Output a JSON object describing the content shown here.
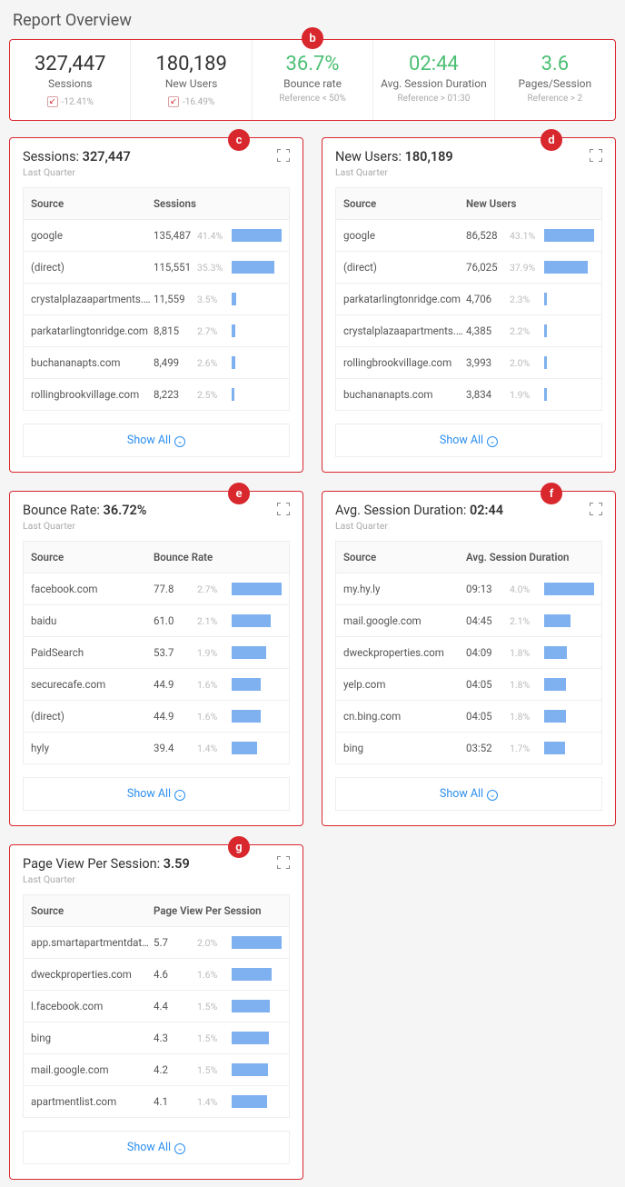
{
  "page_title": "Report Overview",
  "badges": {
    "overview": "b",
    "sessions": "c",
    "new_users": "d",
    "bounce": "e",
    "duration": "f",
    "pageview": "g"
  },
  "colors": {
    "accent_red": "#d8272d",
    "green": "#4bbf73",
    "bar": "#7fb0ef",
    "link": "#2b8ef0"
  },
  "overview": {
    "sessions": {
      "value": "327,447",
      "label": "Sessions",
      "delta": "-12.41%"
    },
    "new_users": {
      "value": "180,189",
      "label": "New Users",
      "delta": "-16.49%"
    },
    "bounce": {
      "value": "36.7%",
      "label": "Bounce rate",
      "ref": "Reference < 50%"
    },
    "duration": {
      "value": "02:44",
      "label": "Avg. Session Duration",
      "ref": "Reference > 01:30"
    },
    "pages": {
      "value": "3.6",
      "label": "Pages/Session",
      "ref": "Reference > 2"
    }
  },
  "show_all": "Show All",
  "sub_label": "Last Quarter",
  "cards": {
    "sessions": {
      "title": "Sessions:",
      "value": "327,447",
      "col1": "Source",
      "col2": "Sessions",
      "rows": [
        {
          "src": "google",
          "val": "135,487",
          "pct": "41.4%",
          "bar": 100
        },
        {
          "src": "(direct)",
          "val": "115,551",
          "pct": "35.3%",
          "bar": 86
        },
        {
          "src": "crystalplazaapartments.com",
          "val": "11,559",
          "pct": "3.5%",
          "bar": 9
        },
        {
          "src": "parkatarlingtonridge.com",
          "val": "8,815",
          "pct": "2.7%",
          "bar": 7
        },
        {
          "src": "buchananapts.com",
          "val": "8,499",
          "pct": "2.6%",
          "bar": 7
        },
        {
          "src": "rollingbrookvillage.com",
          "val": "8,223",
          "pct": "2.5%",
          "bar": 6
        }
      ]
    },
    "new_users": {
      "title": "New Users:",
      "value": "180,189",
      "col1": "Source",
      "col2": "New Users",
      "rows": [
        {
          "src": "google",
          "val": "86,528",
          "pct": "43.1%",
          "bar": 100
        },
        {
          "src": "(direct)",
          "val": "76,025",
          "pct": "37.9%",
          "bar": 88
        },
        {
          "src": "parkatarlingtonridge.com",
          "val": "4,706",
          "pct": "2.3%",
          "bar": 6
        },
        {
          "src": "crystalplazaapartments.com",
          "val": "4,385",
          "pct": "2.2%",
          "bar": 5
        },
        {
          "src": "rollingbrookvillage.com",
          "val": "3,993",
          "pct": "2.0%",
          "bar": 5
        },
        {
          "src": "buchananapts.com",
          "val": "3,834",
          "pct": "1.9%",
          "bar": 5
        }
      ]
    },
    "bounce": {
      "title": "Bounce Rate:",
      "value": "36.72%",
      "col1": "Source",
      "col2": "Bounce Rate",
      "rows": [
        {
          "src": "facebook.com",
          "val": "77.8",
          "pct": "2.7%",
          "bar": 100
        },
        {
          "src": "baidu",
          "val": "61.0",
          "pct": "2.1%",
          "bar": 78
        },
        {
          "src": "PaidSearch",
          "val": "53.7",
          "pct": "1.9%",
          "bar": 69
        },
        {
          "src": "securecafe.com",
          "val": "44.9",
          "pct": "1.6%",
          "bar": 58
        },
        {
          "src": "(direct)",
          "val": "44.9",
          "pct": "1.6%",
          "bar": 58
        },
        {
          "src": "hyly",
          "val": "39.4",
          "pct": "1.4%",
          "bar": 51
        }
      ]
    },
    "duration": {
      "title": "Avg. Session Duration:",
      "value": "02:44",
      "col1": "Source",
      "col2": "Avg. Session Duration",
      "rows": [
        {
          "src": "my.hy.ly",
          "val": "09:13",
          "pct": "4.0%",
          "bar": 100
        },
        {
          "src": "mail.google.com",
          "val": "04:45",
          "pct": "2.1%",
          "bar": 52
        },
        {
          "src": "dweckproperties.com",
          "val": "04:09",
          "pct": "1.8%",
          "bar": 45
        },
        {
          "src": "yelp.com",
          "val": "04:05",
          "pct": "1.8%",
          "bar": 44
        },
        {
          "src": "cn.bing.com",
          "val": "04:05",
          "pct": "1.8%",
          "bar": 44
        },
        {
          "src": "bing",
          "val": "03:52",
          "pct": "1.7%",
          "bar": 42
        }
      ]
    },
    "pageview": {
      "title": "Page View Per Session:",
      "value": "3.59",
      "col1": "Source",
      "col2": "Page View Per Session",
      "rows": [
        {
          "src": "app.smartapartmentdata.com",
          "val": "5.7",
          "pct": "2.0%",
          "bar": 100
        },
        {
          "src": "dweckproperties.com",
          "val": "4.6",
          "pct": "1.6%",
          "bar": 80
        },
        {
          "src": "l.facebook.com",
          "val": "4.4",
          "pct": "1.5%",
          "bar": 76
        },
        {
          "src": "bing",
          "val": "4.3",
          "pct": "1.5%",
          "bar": 74
        },
        {
          "src": "mail.google.com",
          "val": "4.2",
          "pct": "1.5%",
          "bar": 73
        },
        {
          "src": "apartmentlist.com",
          "val": "4.1",
          "pct": "1.4%",
          "bar": 71
        }
      ]
    }
  }
}
